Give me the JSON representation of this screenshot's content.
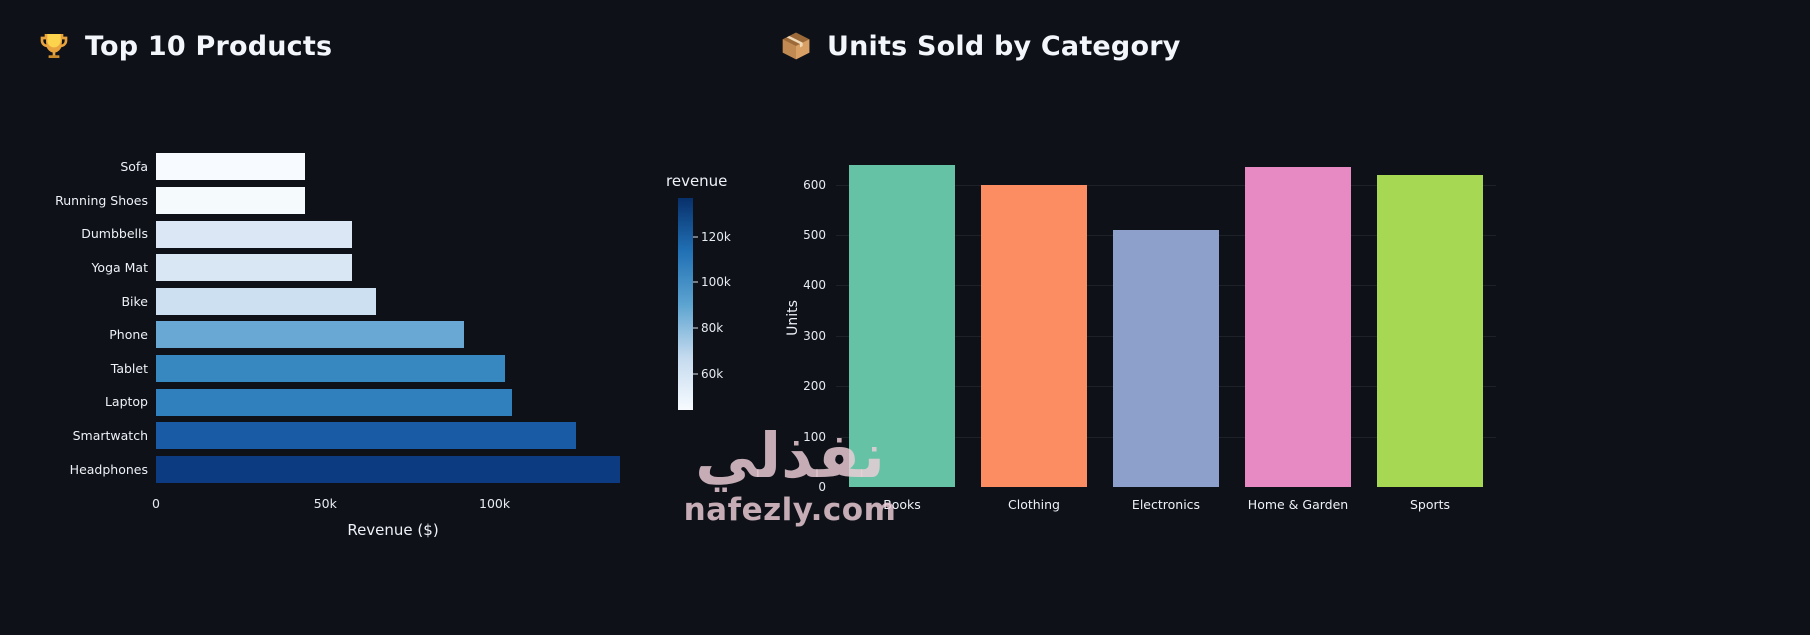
{
  "watermark": {
    "arabic": "نفذلي",
    "domain": "nafezly.com"
  },
  "chart_data": [
    {
      "type": "bar",
      "orientation": "horizontal",
      "icon": "trophy-icon",
      "icon_glyph": "🏆",
      "title": "Top 10 Products",
      "xlabel": "Revenue ($)",
      "categories": [
        "Sofa",
        "Running Shoes",
        "Dumbbells",
        "Yoga Mat",
        "Bike",
        "Phone",
        "Tablet",
        "Laptop",
        "Smartwatch",
        "Headphones"
      ],
      "values": [
        44000,
        44000,
        58000,
        58000,
        65000,
        91000,
        103000,
        105000,
        124000,
        137000
      ],
      "bar_colors": [
        "#f7fbff",
        "#f5fafd",
        "#dbe7f5",
        "#d9e6f4",
        "#cce0f1",
        "#69a8d5",
        "#3787c0",
        "#3080bd",
        "#1a5ba6",
        "#0d3b82"
      ],
      "xlim": [
        0,
        140000
      ],
      "x_ticks": [
        {
          "label": "0",
          "value": 0
        },
        {
          "label": "50k",
          "value": 50000
        },
        {
          "label": "100k",
          "value": 100000
        }
      ],
      "grid": false,
      "legend": "colorbar",
      "colorbar": {
        "label": "revenue",
        "min": 44000,
        "max": 137000,
        "gradient": [
          "#08306b",
          "#2070b4",
          "#5ba3d0",
          "#c4daee",
          "#f7fbff"
        ],
        "ticks": [
          {
            "label": "120k",
            "value": 120000
          },
          {
            "label": "100k",
            "value": 100000
          },
          {
            "label": "80k",
            "value": 80000
          },
          {
            "label": "60k",
            "value": 60000
          }
        ]
      }
    },
    {
      "type": "bar",
      "orientation": "vertical",
      "icon": "package-icon",
      "icon_glyph": "📦",
      "title": "Units Sold by Category",
      "ylabel": "Units",
      "categories": [
        "Books",
        "Clothing",
        "Electronics",
        "Home & Garden",
        "Sports"
      ],
      "values": [
        640,
        600,
        510,
        635,
        620
      ],
      "bar_colors": [
        "#66c2a5",
        "#fc8d62",
        "#8da0cb",
        "#e78ac3",
        "#a6d854"
      ],
      "ylim": [
        0,
        665
      ],
      "y_ticks": [
        0,
        100,
        200,
        300,
        400,
        500,
        600
      ],
      "grid": true,
      "legend": "none"
    }
  ]
}
